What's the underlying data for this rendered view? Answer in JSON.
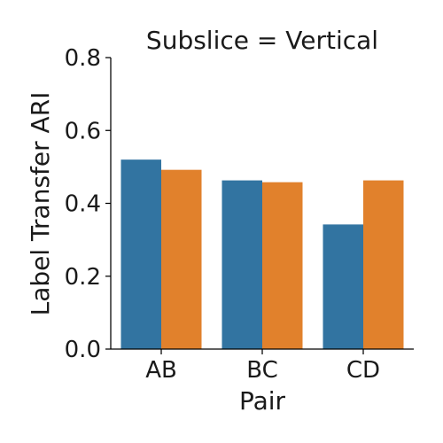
{
  "chart_data": {
    "type": "bar",
    "title": "Subslice = Vertical",
    "xlabel": "Pair",
    "ylabel": "Label Transfer ARI",
    "categories": [
      "AB",
      "BC",
      "CD"
    ],
    "series": [
      {
        "values": [
          0.52,
          0.463,
          0.342
        ],
        "color": "#3274a1"
      },
      {
        "values": [
          0.492,
          0.458,
          0.463
        ],
        "color": "#e1812c"
      }
    ],
    "ylim": [
      0,
      0.8
    ],
    "yticks": [
      0,
      0.2,
      0.4,
      0.6,
      0.8
    ],
    "ytick_labels": [
      "0.0",
      "0.2",
      "0.4",
      "0.6",
      "0.8"
    ],
    "grid": false,
    "legend": "none"
  }
}
